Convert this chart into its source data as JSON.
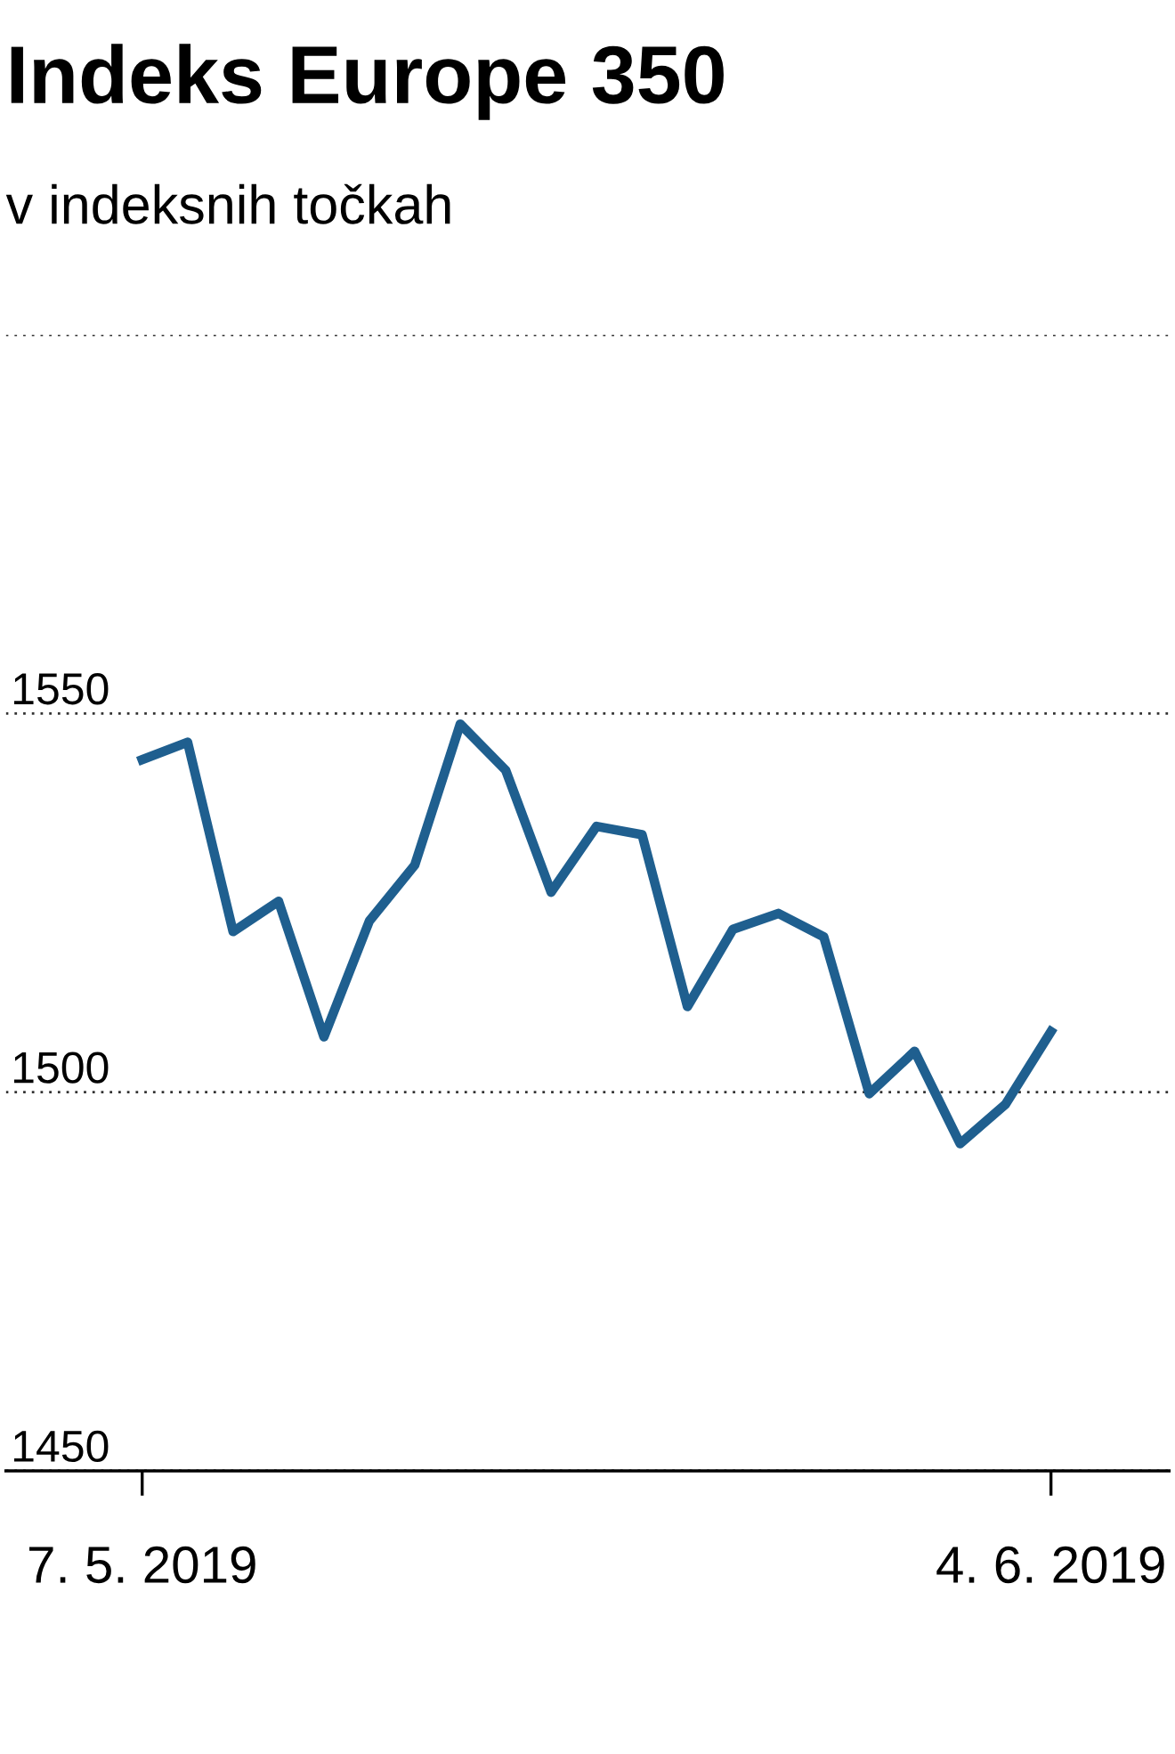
{
  "chart_data": {
    "type": "line",
    "title": "Indeks Europe 350",
    "subtitle": "v indeksnih točkah",
    "categories": [
      "7. 5. 2019",
      null,
      null,
      null,
      null,
      null,
      null,
      null,
      null,
      null,
      null,
      null,
      null,
      null,
      null,
      null,
      null,
      null,
      null,
      null,
      "4. 6. 2019"
    ],
    "series": [
      {
        "color": "#1f5f8f",
        "values": [
          1543.9,
          1546.2,
          1521.2,
          1525.2,
          1507.3,
          1522.6,
          1530.0,
          1548.6,
          1542.5,
          1526.4,
          1535.1,
          1534.0,
          1511.3,
          1521.5,
          1523.6,
          1520.5,
          1499.8,
          1505.4,
          1493.2,
          1498.4,
          1508.0
        ]
      }
    ],
    "ylim": [
      1450,
      1600
    ],
    "yticks": [
      1450,
      1500,
      1550,
      {
        "value": 1600,
        "label": null
      }
    ],
    "grid": "y",
    "marker": "none",
    "line_style": "solid"
  }
}
